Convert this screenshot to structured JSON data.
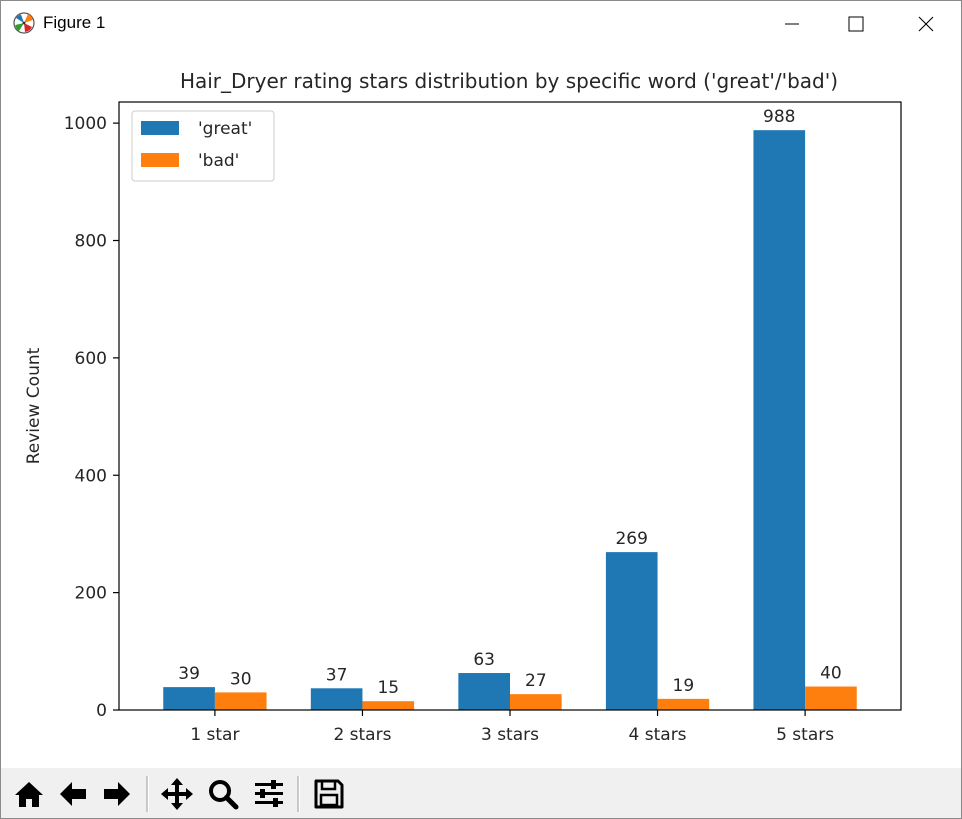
{
  "window": {
    "title": "Figure 1",
    "controls": {
      "minimize": "minimize-icon",
      "maximize": "maximize-icon",
      "close": "close-icon"
    }
  },
  "toolbar": {
    "tools": [
      "home-icon",
      "back-arrow-icon",
      "forward-arrow-icon",
      "pan-move-icon",
      "zoom-magnifier-icon",
      "configure-subplots-icon",
      "save-disk-icon"
    ]
  },
  "colors": {
    "great": "#1f77b4",
    "bad": "#ff7f0e"
  },
  "chart_data": {
    "type": "bar",
    "title": "Hair_Dryer rating stars distribution by specific word ('great'/'bad')",
    "xlabel": "",
    "ylabel": "Review Count",
    "categories": [
      "1 star",
      "2 stars",
      "3 stars",
      "4 stars",
      "5 stars"
    ],
    "series": [
      {
        "name": "'great'",
        "values": [
          39,
          37,
          63,
          269,
          988
        ]
      },
      {
        "name": "'bad'",
        "values": [
          30,
          15,
          27,
          19,
          40
        ]
      }
    ],
    "ylim": [
      0,
      1036
    ],
    "yticks": [
      0,
      200,
      400,
      600,
      800,
      1000
    ],
    "legend": "top-left",
    "grid": false,
    "data_labels": true
  }
}
